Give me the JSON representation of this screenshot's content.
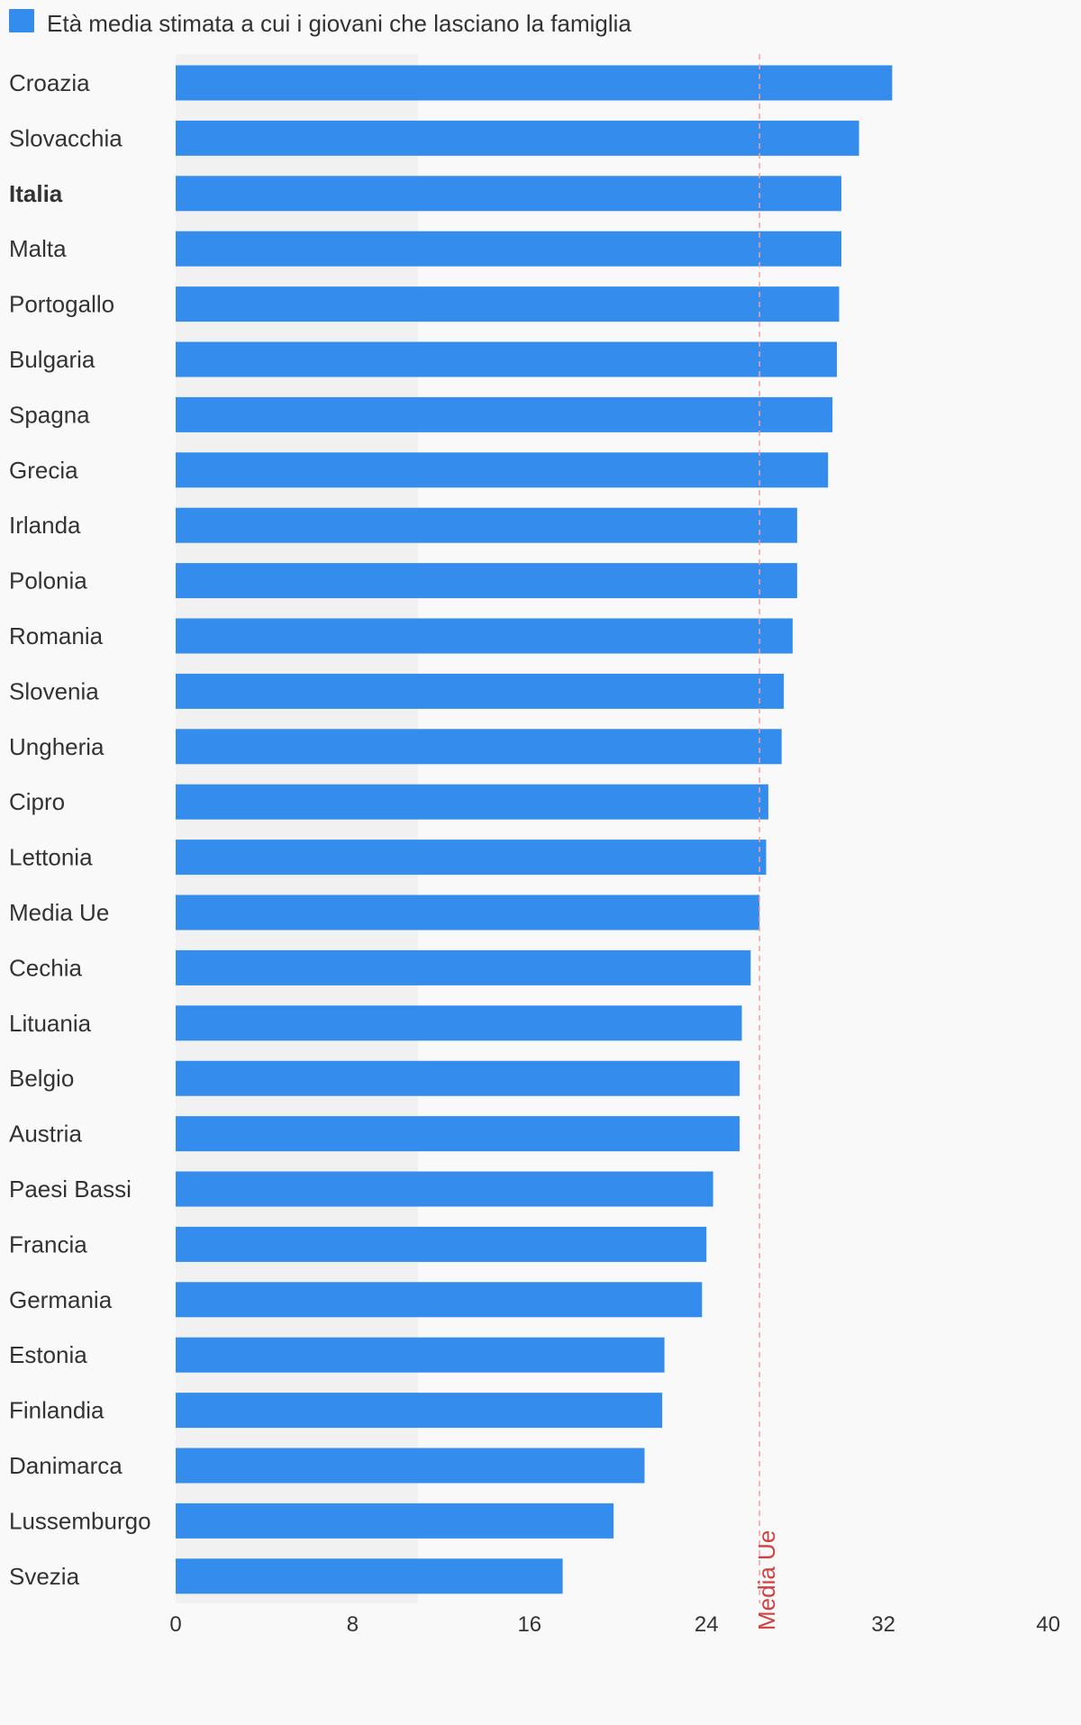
{
  "chart_data": {
    "type": "bar",
    "orientation": "horizontal",
    "title": "",
    "xlabel": "",
    "ylabel": "",
    "xlim": [
      0,
      40
    ],
    "x_ticks": [
      "0",
      "8",
      "16",
      "24",
      "32",
      "40"
    ],
    "categories": [
      "Croazia",
      "Slovacchia",
      "Italia",
      "Malta",
      "Portogallo",
      "Bulgaria",
      "Spagna",
      "Grecia",
      "Irlanda",
      "Polonia",
      "Romania",
      "Slovenia",
      "Ungheria",
      "Cipro",
      "Lettonia",
      "Media Ue",
      "Cechia",
      "Lituania",
      "Belgio",
      "Austria",
      "Paesi Bassi",
      "Francia",
      "Germania",
      "Estonia",
      "Finlandia",
      "Danimarca",
      "Lussemburgo",
      "Svezia"
    ],
    "highlighted_category": "Italia",
    "series": [
      {
        "name": "Età media stimata a cui i giovani che lasciano la famiglia",
        "color": "#348ded",
        "values": [
          32.4,
          30.9,
          30.1,
          30.1,
          30.0,
          29.9,
          29.7,
          29.5,
          28.1,
          28.1,
          27.9,
          27.5,
          27.4,
          26.8,
          26.7,
          26.4,
          26.0,
          25.6,
          25.5,
          25.5,
          24.3,
          24.0,
          23.8,
          22.1,
          22.0,
          21.2,
          19.8,
          17.5
        ]
      }
    ],
    "reference_line": {
      "label": "Media Ue",
      "value": 26.4,
      "color": "#d33e3e"
    },
    "grid": false,
    "legend_position": "top-left"
  }
}
